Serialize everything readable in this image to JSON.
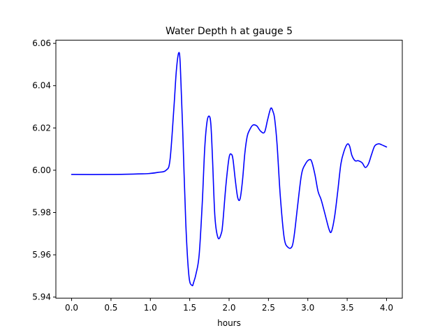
{
  "chart_data": {
    "type": "line",
    "title": "Water Depth h at gauge 5",
    "xlabel": "hours",
    "ylabel": "",
    "xlim": [
      -0.2,
      4.2
    ],
    "ylim": [
      5.9395,
      6.0615
    ],
    "xticks": [
      0.0,
      0.5,
      1.0,
      1.5,
      2.0,
      2.5,
      3.0,
      3.5,
      4.0
    ],
    "xtick_labels": [
      "0.0",
      "0.5",
      "1.0",
      "1.5",
      "2.0",
      "2.5",
      "3.0",
      "3.5",
      "4.0"
    ],
    "yticks": [
      5.94,
      5.96,
      5.98,
      6.0,
      6.02,
      6.04,
      6.06
    ],
    "ytick_labels": [
      "5.94",
      "5.96",
      "5.98",
      "6.00",
      "6.02",
      "6.04",
      "6.06"
    ],
    "grid": false,
    "series": [
      {
        "color": "#0000ff",
        "x": [
          0.0,
          0.5,
          0.9,
          1.0,
          1.1,
          1.2,
          1.25,
          1.3,
          1.33,
          1.36,
          1.38,
          1.41,
          1.45,
          1.49,
          1.53,
          1.55,
          1.58,
          1.62,
          1.66,
          1.69,
          1.72,
          1.75,
          1.77,
          1.79,
          1.82,
          1.86,
          1.9,
          1.92,
          1.96,
          2.0,
          2.03,
          2.05,
          2.08,
          2.11,
          2.14,
          2.17,
          2.2,
          2.23,
          2.26,
          2.3,
          2.35,
          2.4,
          2.45,
          2.49,
          2.53,
          2.56,
          2.58,
          2.61,
          2.65,
          2.7,
          2.75,
          2.8,
          2.83,
          2.87,
          2.92,
          2.97,
          3.02,
          3.05,
          3.09,
          3.13,
          3.17,
          3.22,
          3.27,
          3.3,
          3.34,
          3.38,
          3.42,
          3.46,
          3.5,
          3.53,
          3.56,
          3.6,
          3.64,
          3.69,
          3.73,
          3.77,
          3.81,
          3.85,
          3.9,
          3.94,
          3.97,
          4.0
        ],
        "y": [
          5.998,
          5.998,
          5.9983,
          5.9985,
          5.999,
          6.0,
          6.005,
          6.03,
          6.047,
          6.0555,
          6.05,
          6.02,
          5.975,
          5.95,
          5.9455,
          5.947,
          5.951,
          5.96,
          5.985,
          6.01,
          6.023,
          6.0255,
          6.021,
          6.005,
          5.978,
          5.968,
          5.97,
          5.975,
          5.993,
          6.006,
          6.0075,
          6.005,
          5.995,
          5.987,
          5.9865,
          5.995,
          6.008,
          6.016,
          6.019,
          6.0213,
          6.021,
          6.0185,
          6.018,
          6.024,
          6.0293,
          6.0275,
          6.024,
          6.012,
          5.988,
          5.968,
          5.9635,
          5.964,
          5.97,
          5.983,
          5.998,
          6.003,
          6.005,
          6.004,
          5.998,
          5.99,
          5.986,
          5.979,
          5.972,
          5.971,
          5.978,
          5.99,
          6.003,
          6.009,
          6.0123,
          6.0115,
          6.007,
          6.0045,
          6.0045,
          6.0035,
          6.0013,
          6.003,
          6.0075,
          6.0115,
          6.0125,
          6.012,
          6.0115,
          6.011
        ]
      }
    ]
  }
}
